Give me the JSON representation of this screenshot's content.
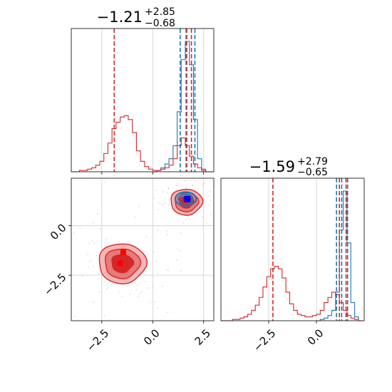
{
  "colors": {
    "red": "#d62728",
    "blue": "#1f77b4",
    "grid": "#cccccc",
    "fill_light": "#f4b6b6",
    "fill_mid": "#e77a7a",
    "fill_dark": "#d62728"
  },
  "chart_data": [
    {
      "type": "histogram",
      "panel": "top-left",
      "title_main": "−1.21",
      "title_sup": "+2.85",
      "title_sub": "−0.68",
      "xlim": [
        -4.0,
        3.0
      ],
      "red_series": {
        "bins": [
          -4.0,
          -3.8,
          -3.6,
          -3.4,
          -3.2,
          -3.0,
          -2.8,
          -2.6,
          -2.4,
          -2.2,
          -2.0,
          -1.8,
          -1.6,
          -1.4,
          -1.2,
          -1.0,
          -0.8,
          -0.6,
          -0.4,
          -0.2,
          0.0,
          0.2,
          0.4,
          0.6,
          0.8,
          1.0,
          1.2,
          1.4,
          1.6,
          1.8,
          2.0,
          2.2,
          2.4,
          2.6,
          2.8,
          3.0
        ],
        "counts": [
          0,
          0,
          1,
          1,
          2,
          3,
          5,
          8,
          14,
          22,
          33,
          38,
          42,
          43,
          40,
          30,
          16,
          8,
          4,
          2,
          1,
          1,
          2,
          3,
          5,
          10,
          20,
          26,
          20,
          12,
          6,
          3,
          1,
          0,
          0
        ]
      },
      "blue_series": {
        "bins": [
          0.0,
          0.2,
          0.4,
          0.6,
          0.8,
          1.0,
          1.2,
          1.4,
          1.6,
          1.8,
          2.0,
          2.2,
          2.4,
          2.6
        ],
        "counts": [
          0,
          1,
          3,
          6,
          10,
          20,
          46,
          86,
          100,
          82,
          40,
          10,
          2
        ]
      },
      "red_quantiles": [
        -1.89,
        1.64,
        1.9
      ],
      "blue_quantiles": [
        1.35,
        1.67,
        2.07
      ],
      "xticks": [
        -2.5,
        0.0,
        2.5
      ]
    },
    {
      "type": "histogram",
      "panel": "bottom-right",
      "title_main": "−1.59",
      "title_sup": "+2.79",
      "title_sub": "−0.65",
      "xlim": [
        -5.0,
        2.5
      ],
      "xticks": [
        -2.5,
        0.0
      ],
      "xtick_labels": [
        "−2.5",
        "0.0"
      ],
      "red_series": {
        "bins": [
          -5.0,
          -4.8,
          -4.6,
          -4.4,
          -4.2,
          -4.0,
          -3.8,
          -3.6,
          -3.4,
          -3.2,
          -3.0,
          -2.8,
          -2.6,
          -2.4,
          -2.2,
          -2.0,
          -1.8,
          -1.6,
          -1.4,
          -1.2,
          -1.0,
          -0.8,
          -0.6,
          -0.4,
          -0.2,
          0.0,
          0.2,
          0.4,
          0.6,
          0.8,
          1.0,
          1.2,
          1.4,
          1.6,
          1.8,
          2.0,
          2.2,
          2.4
        ],
        "counts": [
          0,
          0,
          0,
          1,
          1,
          2,
          3,
          5,
          8,
          12,
          18,
          26,
          34,
          40,
          42,
          40,
          33,
          22,
          13,
          8,
          5,
          4,
          3,
          3,
          4,
          5,
          8,
          14,
          18,
          22,
          20,
          14,
          8,
          4,
          2,
          1,
          0
        ]
      },
      "blue_series": {
        "bins": [
          0.0,
          0.2,
          0.4,
          0.6,
          0.8,
          1.0,
          1.2,
          1.4,
          1.6,
          1.8,
          2.0,
          2.2
        ],
        "counts": [
          0,
          1,
          2,
          4,
          8,
          22,
          70,
          100,
          60,
          14,
          3
        ]
      },
      "red_quantiles": [
        -2.28,
        1.2,
        1.55
      ],
      "blue_quantiles": [
        1.05,
        1.32,
        1.63
      ]
    },
    {
      "type": "contour",
      "panel": "bottom-left",
      "xlim": [
        -4.0,
        3.0
      ],
      "ylim": [
        -4.8,
        2.4
      ],
      "xticks": [
        -2.5,
        0.0,
        2.5
      ],
      "xtick_labels": [
        "−2.5",
        "0.0",
        "2.5"
      ],
      "yticks": [
        -2.5,
        0.0
      ],
      "ytick_labels": [
        "−2.5",
        "0.0"
      ],
      "red_modes": [
        {
          "x": -1.5,
          "y": -1.9,
          "sx": 0.75,
          "sy": 0.65
        },
        {
          "x": 1.65,
          "y": 1.2,
          "sx": 0.5,
          "sy": 0.42
        }
      ],
      "red_markers": [
        {
          "x": -1.45,
          "y": -1.35
        },
        {
          "x": -1.6,
          "y": -1.9
        },
        {
          "x": 1.6,
          "y": 1.3
        }
      ],
      "blue_mode": {
        "x": 1.62,
        "y": 1.35,
        "sx": 0.32,
        "sy": 0.22
      },
      "blue_marker": {
        "x": 1.7,
        "y": 1.35
      }
    }
  ]
}
